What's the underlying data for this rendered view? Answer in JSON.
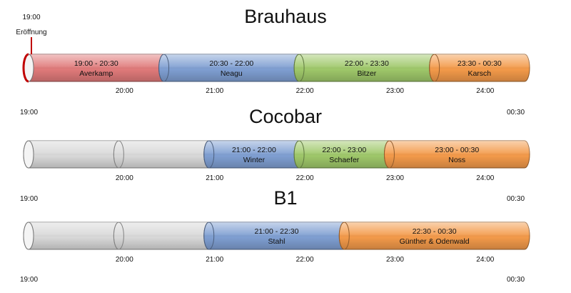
{
  "opening_marker": {
    "time": "19:00",
    "label": "Eröffnung"
  },
  "colors": {
    "red": "#e07a7a",
    "blue": "#7f9fd2",
    "green": "#9fc86a",
    "orange": "#f39a4a",
    "empty": "#d9d9d9",
    "marker": "#c00000"
  },
  "venues": [
    {
      "name": "Brauhaus",
      "slots": [
        {
          "time": "19:00 - 20:30",
          "act": "Averkamp",
          "color": "red"
        },
        {
          "time": "20:30 - 22:00",
          "act": "Neagu",
          "color": "blue"
        },
        {
          "time": "22:00 - 23:30",
          "act": "Bitzer",
          "color": "green"
        },
        {
          "time": "23:30 - 00:30",
          "act": "Karsch",
          "color": "orange"
        }
      ],
      "ticks": [
        "20:00",
        "21:00",
        "22:00",
        "23:00",
        "24:00"
      ],
      "range_start": "19:00",
      "range_end": "00:30"
    },
    {
      "name": "Cocobar",
      "slots": [
        {
          "time": "",
          "act": "",
          "color": "empty"
        },
        {
          "time": "",
          "act": "",
          "color": "empty"
        },
        {
          "time": "21:00 - 22:00",
          "act": "Winter",
          "color": "blue"
        },
        {
          "time": "22:00 - 23:00",
          "act": "Schaefer",
          "color": "green"
        },
        {
          "time": "23:00 - 00:30",
          "act": "Noss",
          "color": "orange"
        }
      ],
      "ticks": [
        "20:00",
        "21:00",
        "22:00",
        "23:00",
        "24:00"
      ],
      "range_start": "19:00",
      "range_end": "00:30"
    },
    {
      "name": "B1",
      "slots": [
        {
          "time": "",
          "act": "",
          "color": "empty"
        },
        {
          "time": "",
          "act": "",
          "color": "empty"
        },
        {
          "time": "21:00 - 22:30",
          "act": "Stahl",
          "color": "blue"
        },
        {
          "time": "22:30 - 00:30",
          "act": "Günther & Odenwald",
          "color": "orange"
        }
      ],
      "ticks": [
        "20:00",
        "21:00",
        "22:00",
        "23:00",
        "24:00"
      ],
      "range_start": "19:00",
      "range_end": "00:30"
    }
  ]
}
